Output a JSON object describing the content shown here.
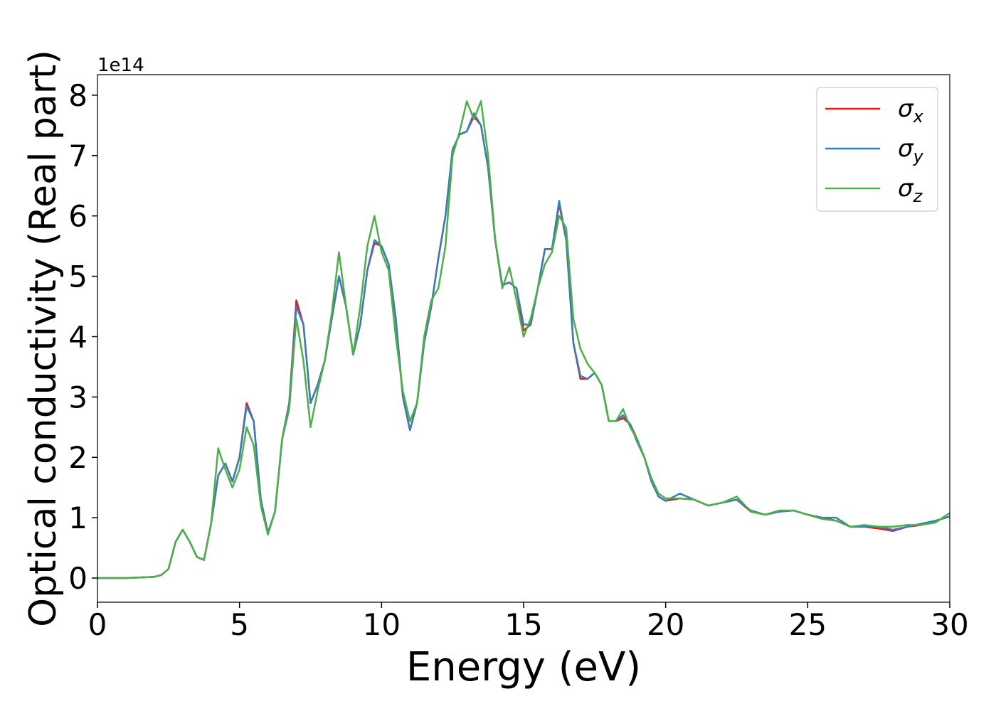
{
  "chart_data": {
    "type": "line",
    "x_label": "Energy (eV)",
    "y_label": "Optical conductivity (Real part)",
    "y_offset_label": "1e14",
    "x": [
      0,
      1,
      2,
      2.25,
      2.5,
      2.75,
      3,
      3.25,
      3.5,
      3.75,
      4,
      4.25,
      4.5,
      4.75,
      5,
      5.25,
      5.5,
      5.75,
      6,
      6.25,
      6.5,
      6.75,
      7,
      7.25,
      7.5,
      7.75,
      8,
      8.25,
      8.5,
      8.75,
      9,
      9.25,
      9.5,
      9.75,
      10,
      10.25,
      10.5,
      10.75,
      11,
      11.25,
      11.5,
      11.75,
      12,
      12.25,
      12.5,
      12.75,
      13,
      13.25,
      13.5,
      13.75,
      14,
      14.25,
      14.5,
      14.75,
      15,
      15.25,
      15.5,
      15.75,
      16,
      16.25,
      16.5,
      16.75,
      17,
      17.25,
      17.5,
      17.75,
      18,
      18.25,
      18.5,
      18.75,
      19,
      19.25,
      19.5,
      19.75,
      20,
      20.5,
      21,
      21.5,
      22,
      22.5,
      23,
      23.5,
      24,
      24.5,
      25,
      25.5,
      26,
      26.5,
      27,
      27.5,
      28,
      28.5,
      29,
      29.5,
      30
    ],
    "series": [
      {
        "name": "σx",
        "color": "#e41a1c",
        "values": [
          0,
          0,
          0.02,
          0.05,
          0.15,
          0.6,
          0.8,
          0.6,
          0.35,
          0.3,
          0.9,
          1.7,
          1.9,
          1.6,
          2.0,
          2.9,
          2.6,
          1.3,
          0.75,
          1.1,
          2.3,
          2.9,
          4.6,
          4.2,
          2.9,
          3.2,
          3.6,
          4.3,
          5.0,
          4.5,
          3.7,
          4.2,
          5.1,
          5.55,
          5.5,
          5.2,
          4.3,
          3.0,
          2.45,
          2.9,
          3.9,
          4.5,
          5.3,
          6.0,
          7.1,
          7.35,
          7.4,
          7.65,
          7.5,
          6.8,
          5.6,
          4.85,
          4.9,
          4.8,
          4.1,
          4.2,
          4.8,
          5.45,
          5.45,
          6.2,
          5.6,
          3.9,
          3.3,
          3.3,
          3.4,
          3.2,
          2.6,
          2.6,
          2.65,
          2.55,
          2.3,
          2.0,
          1.6,
          1.35,
          1.28,
          1.32,
          1.3,
          1.2,
          1.25,
          1.3,
          1.1,
          1.05,
          1.1,
          1.12,
          1.05,
          1.0,
          0.95,
          0.85,
          0.85,
          0.82,
          0.78,
          0.85,
          0.88,
          0.95,
          1.02
        ]
      },
      {
        "name": "σy",
        "color": "#377eb8",
        "values": [
          0,
          0,
          0.02,
          0.05,
          0.15,
          0.6,
          0.8,
          0.6,
          0.35,
          0.3,
          0.9,
          1.7,
          1.9,
          1.6,
          2.0,
          2.85,
          2.6,
          1.3,
          0.75,
          1.1,
          2.3,
          2.9,
          4.5,
          4.2,
          2.9,
          3.2,
          3.6,
          4.3,
          5.0,
          4.5,
          3.7,
          4.2,
          5.1,
          5.6,
          5.5,
          5.2,
          4.3,
          3.0,
          2.45,
          2.9,
          3.9,
          4.5,
          5.3,
          6.0,
          7.1,
          7.35,
          7.4,
          7.7,
          7.5,
          6.8,
          5.6,
          4.85,
          4.9,
          4.8,
          4.2,
          4.2,
          4.8,
          5.45,
          5.45,
          6.25,
          5.6,
          3.9,
          3.35,
          3.3,
          3.4,
          3.2,
          2.6,
          2.6,
          2.7,
          2.55,
          2.25,
          2.0,
          1.6,
          1.35,
          1.28,
          1.4,
          1.3,
          1.2,
          1.25,
          1.3,
          1.12,
          1.05,
          1.1,
          1.12,
          1.05,
          1.0,
          1.0,
          0.85,
          0.85,
          0.85,
          0.8,
          0.85,
          0.9,
          0.95,
          1.02
        ]
      },
      {
        "name": "σz",
        "color": "#4daf4a",
        "values": [
          0,
          0,
          0.02,
          0.05,
          0.15,
          0.6,
          0.8,
          0.6,
          0.35,
          0.3,
          0.9,
          2.15,
          1.8,
          1.5,
          1.8,
          2.5,
          2.2,
          1.2,
          0.72,
          1.1,
          2.3,
          2.8,
          4.3,
          3.6,
          2.5,
          3.1,
          3.6,
          4.4,
          5.4,
          4.5,
          3.7,
          4.5,
          5.5,
          6.0,
          5.4,
          5.1,
          4.0,
          3.1,
          2.6,
          2.9,
          4.0,
          4.6,
          4.8,
          5.5,
          7.0,
          7.4,
          7.9,
          7.6,
          7.9,
          7.0,
          5.6,
          4.8,
          5.15,
          4.6,
          4.0,
          4.3,
          4.8,
          5.2,
          5.4,
          6.0,
          5.8,
          4.3,
          3.8,
          3.55,
          3.4,
          3.2,
          2.6,
          2.6,
          2.8,
          2.5,
          2.3,
          2.0,
          1.65,
          1.4,
          1.32,
          1.32,
          1.3,
          1.2,
          1.25,
          1.35,
          1.1,
          1.05,
          1.12,
          1.12,
          1.05,
          0.98,
          0.95,
          0.85,
          0.88,
          0.85,
          0.85,
          0.88,
          0.88,
          0.92,
          1.08
        ]
      }
    ],
    "xlim": [
      0,
      30
    ],
    "xticks": [
      0,
      5,
      10,
      15,
      20,
      25,
      30
    ],
    "ylim": [
      -0.4,
      8.34
    ],
    "yticks": [
      0,
      1,
      2,
      3,
      4,
      5,
      6,
      7,
      8
    ],
    "legend": "upper right"
  }
}
